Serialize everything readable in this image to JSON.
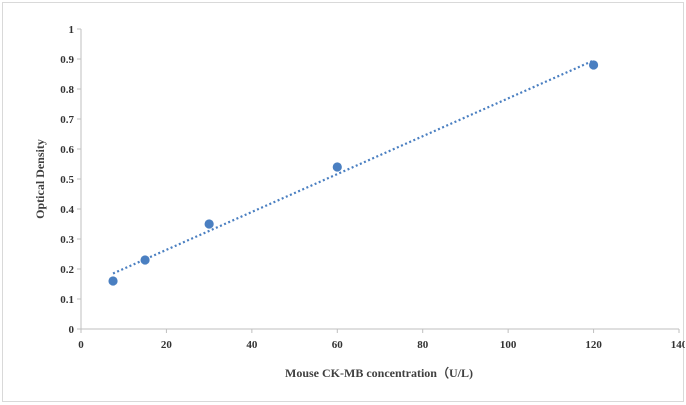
{
  "chart_data": {
    "type": "scatter",
    "title": "",
    "xlabel": "Mouse CK-MB concentration（U/L)",
    "ylabel": "Optical Density",
    "xlim": [
      0,
      140
    ],
    "ylim": [
      0,
      1
    ],
    "xticks": [
      0,
      20,
      40,
      60,
      80,
      100,
      120,
      140
    ],
    "yticks": [
      0,
      0.1,
      0.2,
      0.3,
      0.4,
      0.5,
      0.6,
      0.7,
      0.8,
      0.9,
      1
    ],
    "grid": false,
    "legend": "none",
    "series": [
      {
        "x": [
          7.5,
          15,
          30,
          60,
          120
        ],
        "y": [
          0.16,
          0.23,
          0.35,
          0.54,
          0.88
        ],
        "marker_color": "#4a7fc1"
      }
    ],
    "trendline": {
      "kind": "linear",
      "x": [
        7.5,
        120
      ],
      "y": [
        0.185,
        0.895
      ],
      "color": "#4a7fc1",
      "style": "dotted"
    }
  }
}
